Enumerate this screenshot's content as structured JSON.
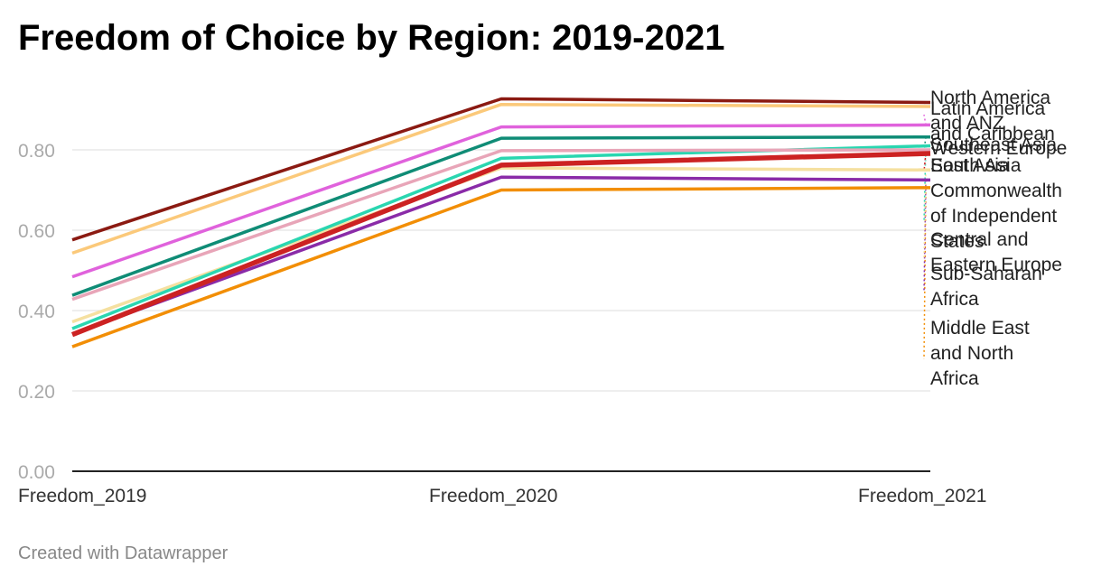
{
  "chart_data": {
    "type": "line",
    "title": "Freedom of Choice by Region: 2019-2021",
    "categories": [
      "Freedom_2019",
      "Freedom_2020",
      "Freedom_2021"
    ],
    "ylim": [
      0,
      0.9
    ],
    "yticks": [
      "0.00",
      "0.20",
      "0.40",
      "0.60",
      "0.80"
    ],
    "ytick_values": [
      0,
      0.2,
      0.4,
      0.6,
      0.8
    ],
    "grid": true,
    "legend": "direct labels on right",
    "series": [
      {
        "name": "Middle East and North Africa",
        "color": "#f28e05",
        "values": [
          0.31,
          0.7,
          0.706
        ]
      },
      {
        "name": "Sub-Saharan Africa",
        "color": "#8a2ba8",
        "values": [
          0.342,
          0.732,
          0.725
        ]
      },
      {
        "name": "Central and Eastern Europe",
        "color": "#f5e0a0",
        "values": [
          0.372,
          0.755,
          0.75
        ]
      },
      {
        "name": "Commonwealth of Independent States",
        "color": "#2ad6b0",
        "values": [
          0.355,
          0.779,
          0.81
        ]
      },
      {
        "name": "South Asia",
        "color": "#e8a5b8",
        "values": [
          0.428,
          0.798,
          0.8
        ]
      },
      {
        "name": "East Asia",
        "color": "#cc2222",
        "values": [
          0.34,
          0.762,
          0.791
        ]
      },
      {
        "name": "Southeast Asia",
        "color": "#0f8c76",
        "values": [
          0.438,
          0.829,
          0.832
        ]
      },
      {
        "name": "Latin America and Caribbean",
        "color": "#e062dc",
        "values": [
          0.484,
          0.857,
          0.862
        ]
      },
      {
        "name": "Western Europe",
        "color": "#fbc97a",
        "values": [
          0.543,
          0.913,
          0.908
        ]
      },
      {
        "name": "North America and ANZ",
        "color": "#8b1a12",
        "values": [
          0.576,
          0.927,
          0.918
        ]
      }
    ],
    "labels": [
      {
        "lines": [
          "North America"
        ],
        "color": "#8b1a12"
      },
      {
        "lines": [
          "Latin America"
        ],
        "color": "#e062dc"
      },
      {
        "lines": [
          "and ANZ",
          "Western Europe"
        ],
        "color": "#8b1a12"
      },
      {
        "lines": [
          "and Caribbean"
        ],
        "color": "#e062dc"
      },
      {
        "lines": [
          "Southeast Asia"
        ],
        "color": "#0f8c76"
      },
      {
        "lines": [
          "South Asia"
        ],
        "color": "#e8a5b8"
      },
      {
        "lines": [
          "East Asia"
        ],
        "color": "#cc2222"
      },
      {
        "lines": [
          "Commonwealth",
          "of Independent",
          "States"
        ],
        "color": "#2ad6b0"
      },
      {
        "lines": [
          "Central and",
          "Eastern Europe"
        ],
        "color": "#f5e0a0"
      },
      {
        "lines": [
          "Sub-Saharan",
          "Africa"
        ],
        "color": "#8a2ba8"
      },
      {
        "lines": [
          "Middle East",
          "and North",
          "Africa"
        ],
        "color": "#f28e05"
      }
    ]
  },
  "footer": "Created with Datawrapper"
}
